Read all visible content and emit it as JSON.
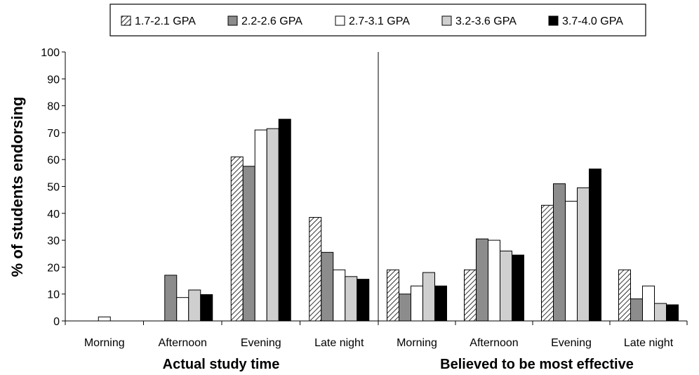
{
  "chart_data": {
    "type": "bar",
    "ylabel": "% of students endorsing",
    "ylim": [
      0,
      100
    ],
    "yticks": [
      "0",
      "10",
      "20",
      "30",
      "40",
      "50",
      "60",
      "70",
      "80",
      "90",
      "100"
    ],
    "grid": false,
    "legend_position": "top",
    "panels": [
      {
        "title": "Actual study time",
        "categories": [
          "Morning",
          "Afternoon",
          "Evening",
          "Late night"
        ],
        "series": [
          {
            "name": "1.7-2.1 GPA",
            "values": [
              0,
              0,
              61,
              38.5
            ]
          },
          {
            "name": "2.2-2.6 GPA",
            "values": [
              0,
              17,
              57.5,
              25.5
            ]
          },
          {
            "name": "2.7-3.1 GPA",
            "values": [
              1.5,
              8.7,
              71,
              19
            ]
          },
          {
            "name": "3.2-3.6 GPA",
            "values": [
              0,
              11.5,
              71.5,
              16.5
            ]
          },
          {
            "name": "3.7-4.0 GPA",
            "values": [
              0,
              9.8,
              75,
              15.5
            ]
          }
        ]
      },
      {
        "title": "Believed to be most effective",
        "categories": [
          "Morning",
          "Afternoon",
          "Evening",
          "Late night"
        ],
        "series": [
          {
            "name": "1.7-2.1 GPA",
            "values": [
              19,
              19,
              43,
              19
            ]
          },
          {
            "name": "2.2-2.6 GPA",
            "values": [
              10,
              30.5,
              51,
              8.2
            ]
          },
          {
            "name": "2.7-3.1 GPA",
            "values": [
              13,
              30,
              44.5,
              13
            ]
          },
          {
            "name": "3.2-3.6 GPA",
            "values": [
              18,
              26,
              49.5,
              6.5
            ]
          },
          {
            "name": "3.7-4.0 GPA",
            "values": [
              13,
              24.5,
              56.5,
              6
            ]
          }
        ]
      }
    ],
    "series_styles": [
      {
        "fill": "url(#hatch)",
        "stroke": "#000000"
      },
      {
        "fill": "#8c8c8c",
        "stroke": "#000000"
      },
      {
        "fill": "#ffffff",
        "stroke": "#000000"
      },
      {
        "fill": "#cfcfcf",
        "stroke": "#000000"
      },
      {
        "fill": "#000000",
        "stroke": "#000000"
      }
    ]
  }
}
